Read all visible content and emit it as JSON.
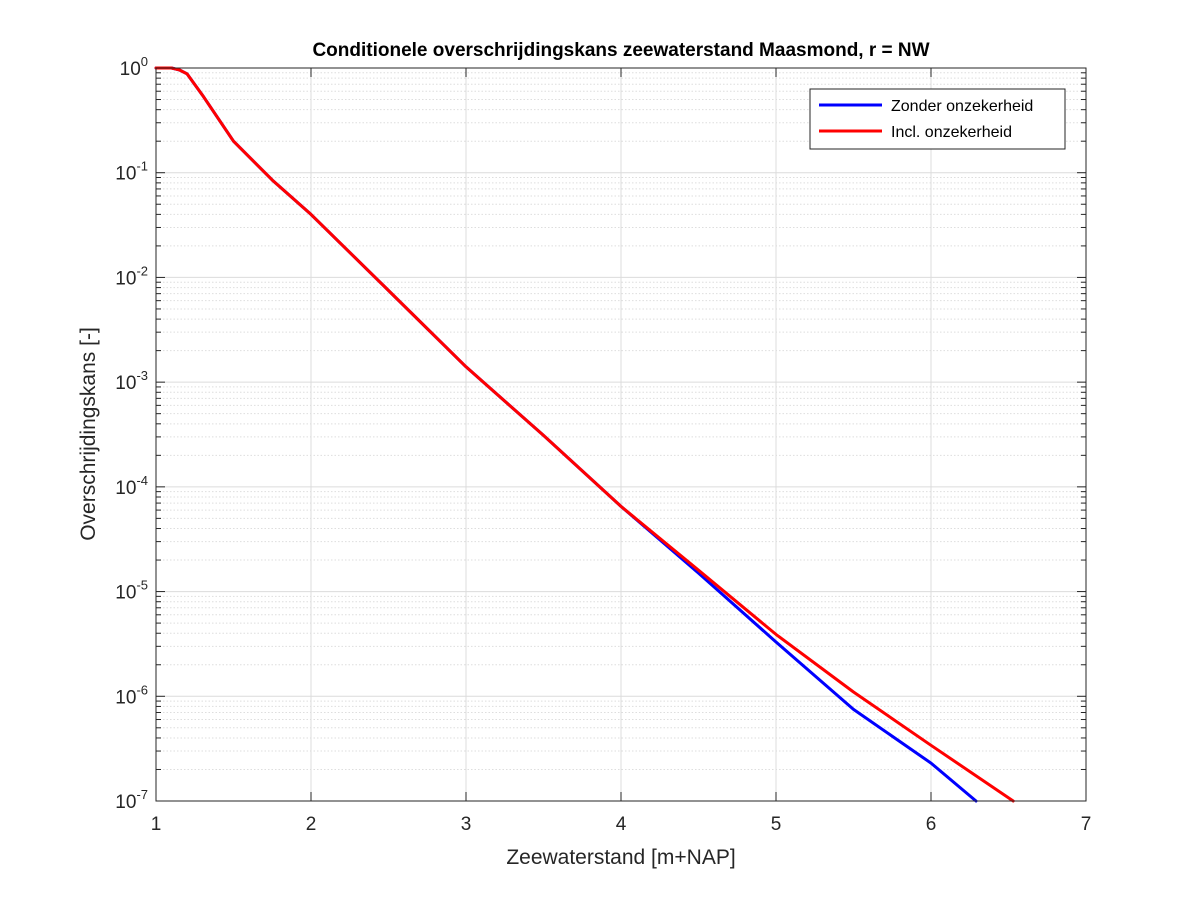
{
  "chart_data": {
    "type": "line",
    "title": "Conditionele overschrijdingskans zeewaterstand Maasmond, r = NW",
    "xlabel": "Zeewaterstand [m+NAP]",
    "ylabel": "Overschrijdingskans [-]",
    "xlim": [
      1,
      7
    ],
    "ylim": [
      1e-07,
      1
    ],
    "yscale": "log",
    "grid": true,
    "minor_grid": true,
    "legend_position": "top-right",
    "x_ticks": [
      1,
      2,
      3,
      4,
      5,
      6,
      7
    ],
    "x_tick_labels": [
      "1",
      "2",
      "3",
      "4",
      "5",
      "6",
      "7"
    ],
    "y_ticks": [
      {
        "value": 1,
        "base": "10",
        "exp": "0"
      },
      {
        "value": 0.1,
        "base": "10",
        "exp": "-1"
      },
      {
        "value": 0.01,
        "base": "10",
        "exp": "-2"
      },
      {
        "value": 0.001,
        "base": "10",
        "exp": "-3"
      },
      {
        "value": 0.0001,
        "base": "10",
        "exp": "-4"
      },
      {
        "value": 1e-05,
        "base": "10",
        "exp": "-5"
      },
      {
        "value": 1e-06,
        "base": "10",
        "exp": "-6"
      },
      {
        "value": 1e-07,
        "base": "10",
        "exp": "-7"
      }
    ],
    "series": [
      {
        "name": "Zonder onzekerheid",
        "color": "#0000ff",
        "x": [
          1.0,
          1.1,
          1.15,
          1.2,
          1.3,
          1.5,
          1.75,
          2.0,
          2.5,
          3.0,
          3.5,
          4.0,
          4.5,
          5.0,
          5.5,
          6.0,
          6.29
        ],
        "y": [
          1.0,
          1.0,
          0.96,
          0.88,
          0.55,
          0.2,
          0.085,
          0.04,
          0.0075,
          0.0014,
          0.00031,
          6.5e-05,
          1.5e-05,
          3.3e-06,
          7.5e-07,
          2.3e-07,
          1e-07
        ]
      },
      {
        "name": "Incl. onzekerheid",
        "color": "#ff0000",
        "x": [
          1.0,
          1.1,
          1.15,
          1.2,
          1.3,
          1.5,
          1.75,
          2.0,
          2.5,
          3.0,
          3.5,
          4.0,
          4.5,
          5.0,
          5.5,
          6.0,
          6.53
        ],
        "y": [
          1.0,
          1.0,
          0.96,
          0.88,
          0.55,
          0.2,
          0.085,
          0.04,
          0.0075,
          0.0014,
          0.00031,
          6.5e-05,
          1.6e-05,
          3.9e-06,
          1.1e-06,
          3.4e-07,
          1e-07
        ]
      }
    ]
  }
}
